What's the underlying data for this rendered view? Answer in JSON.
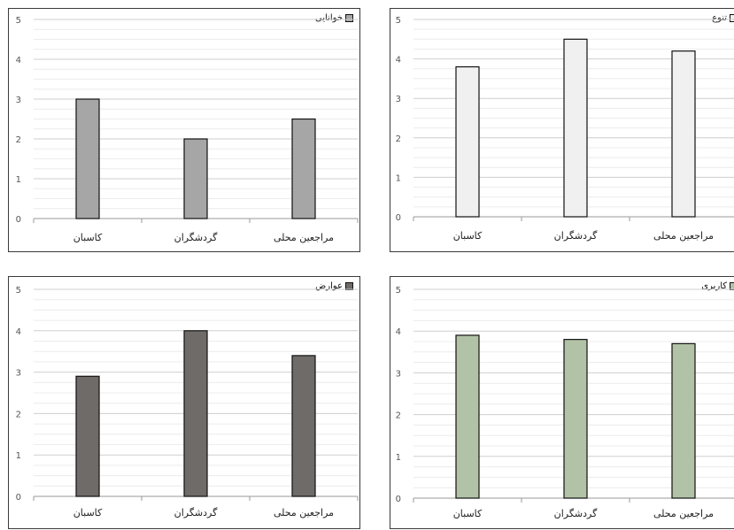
{
  "chart_data": [
    {
      "type": "bar",
      "categories": [
        "کاسبان",
        "گردشگران",
        "مراجعین محلی"
      ],
      "series": [
        {
          "name": "خوانایی",
          "values": [
            3.0,
            2.0,
            2.5
          ]
        }
      ],
      "ylim": [
        0,
        5
      ],
      "yticks": [
        "0",
        "1",
        "2",
        "3",
        "4",
        "5"
      ],
      "color": "#a6a6a6",
      "legend": "top-right",
      "grid": true
    },
    {
      "type": "bar",
      "categories": [
        "کاسبان",
        "گردشگران",
        "مراجعین محلی"
      ],
      "series": [
        {
          "name": "تنوع",
          "values": [
            3.8,
            4.5,
            4.2
          ]
        }
      ],
      "ylim": [
        0,
        5
      ],
      "yticks": [
        "0",
        "1",
        "2",
        "3",
        "4",
        "5"
      ],
      "color": "#f0f0f0",
      "legend": "top-right",
      "grid": true
    },
    {
      "type": "bar",
      "categories": [
        "کاسبان",
        "گردشگران",
        "مراجعین محلی"
      ],
      "series": [
        {
          "name": "عوارض",
          "values": [
            2.9,
            4.0,
            3.4
          ]
        }
      ],
      "ylim": [
        0,
        5
      ],
      "yticks": [
        "0",
        "1",
        "2",
        "3",
        "4",
        "5"
      ],
      "color": "#6f6b68",
      "legend": "top-right",
      "grid": true
    },
    {
      "type": "bar",
      "categories": [
        "کاسبان",
        "گردشگران",
        "مراجعین محلی"
      ],
      "series": [
        {
          "name": "کاربری",
          "values": [
            3.9,
            3.8,
            3.7
          ]
        }
      ],
      "ylim": [
        0,
        5
      ],
      "yticks": [
        "0",
        "1",
        "2",
        "3",
        "4",
        "5"
      ],
      "color": "#b2c2a6",
      "legend": "top-right",
      "grid": true
    }
  ]
}
